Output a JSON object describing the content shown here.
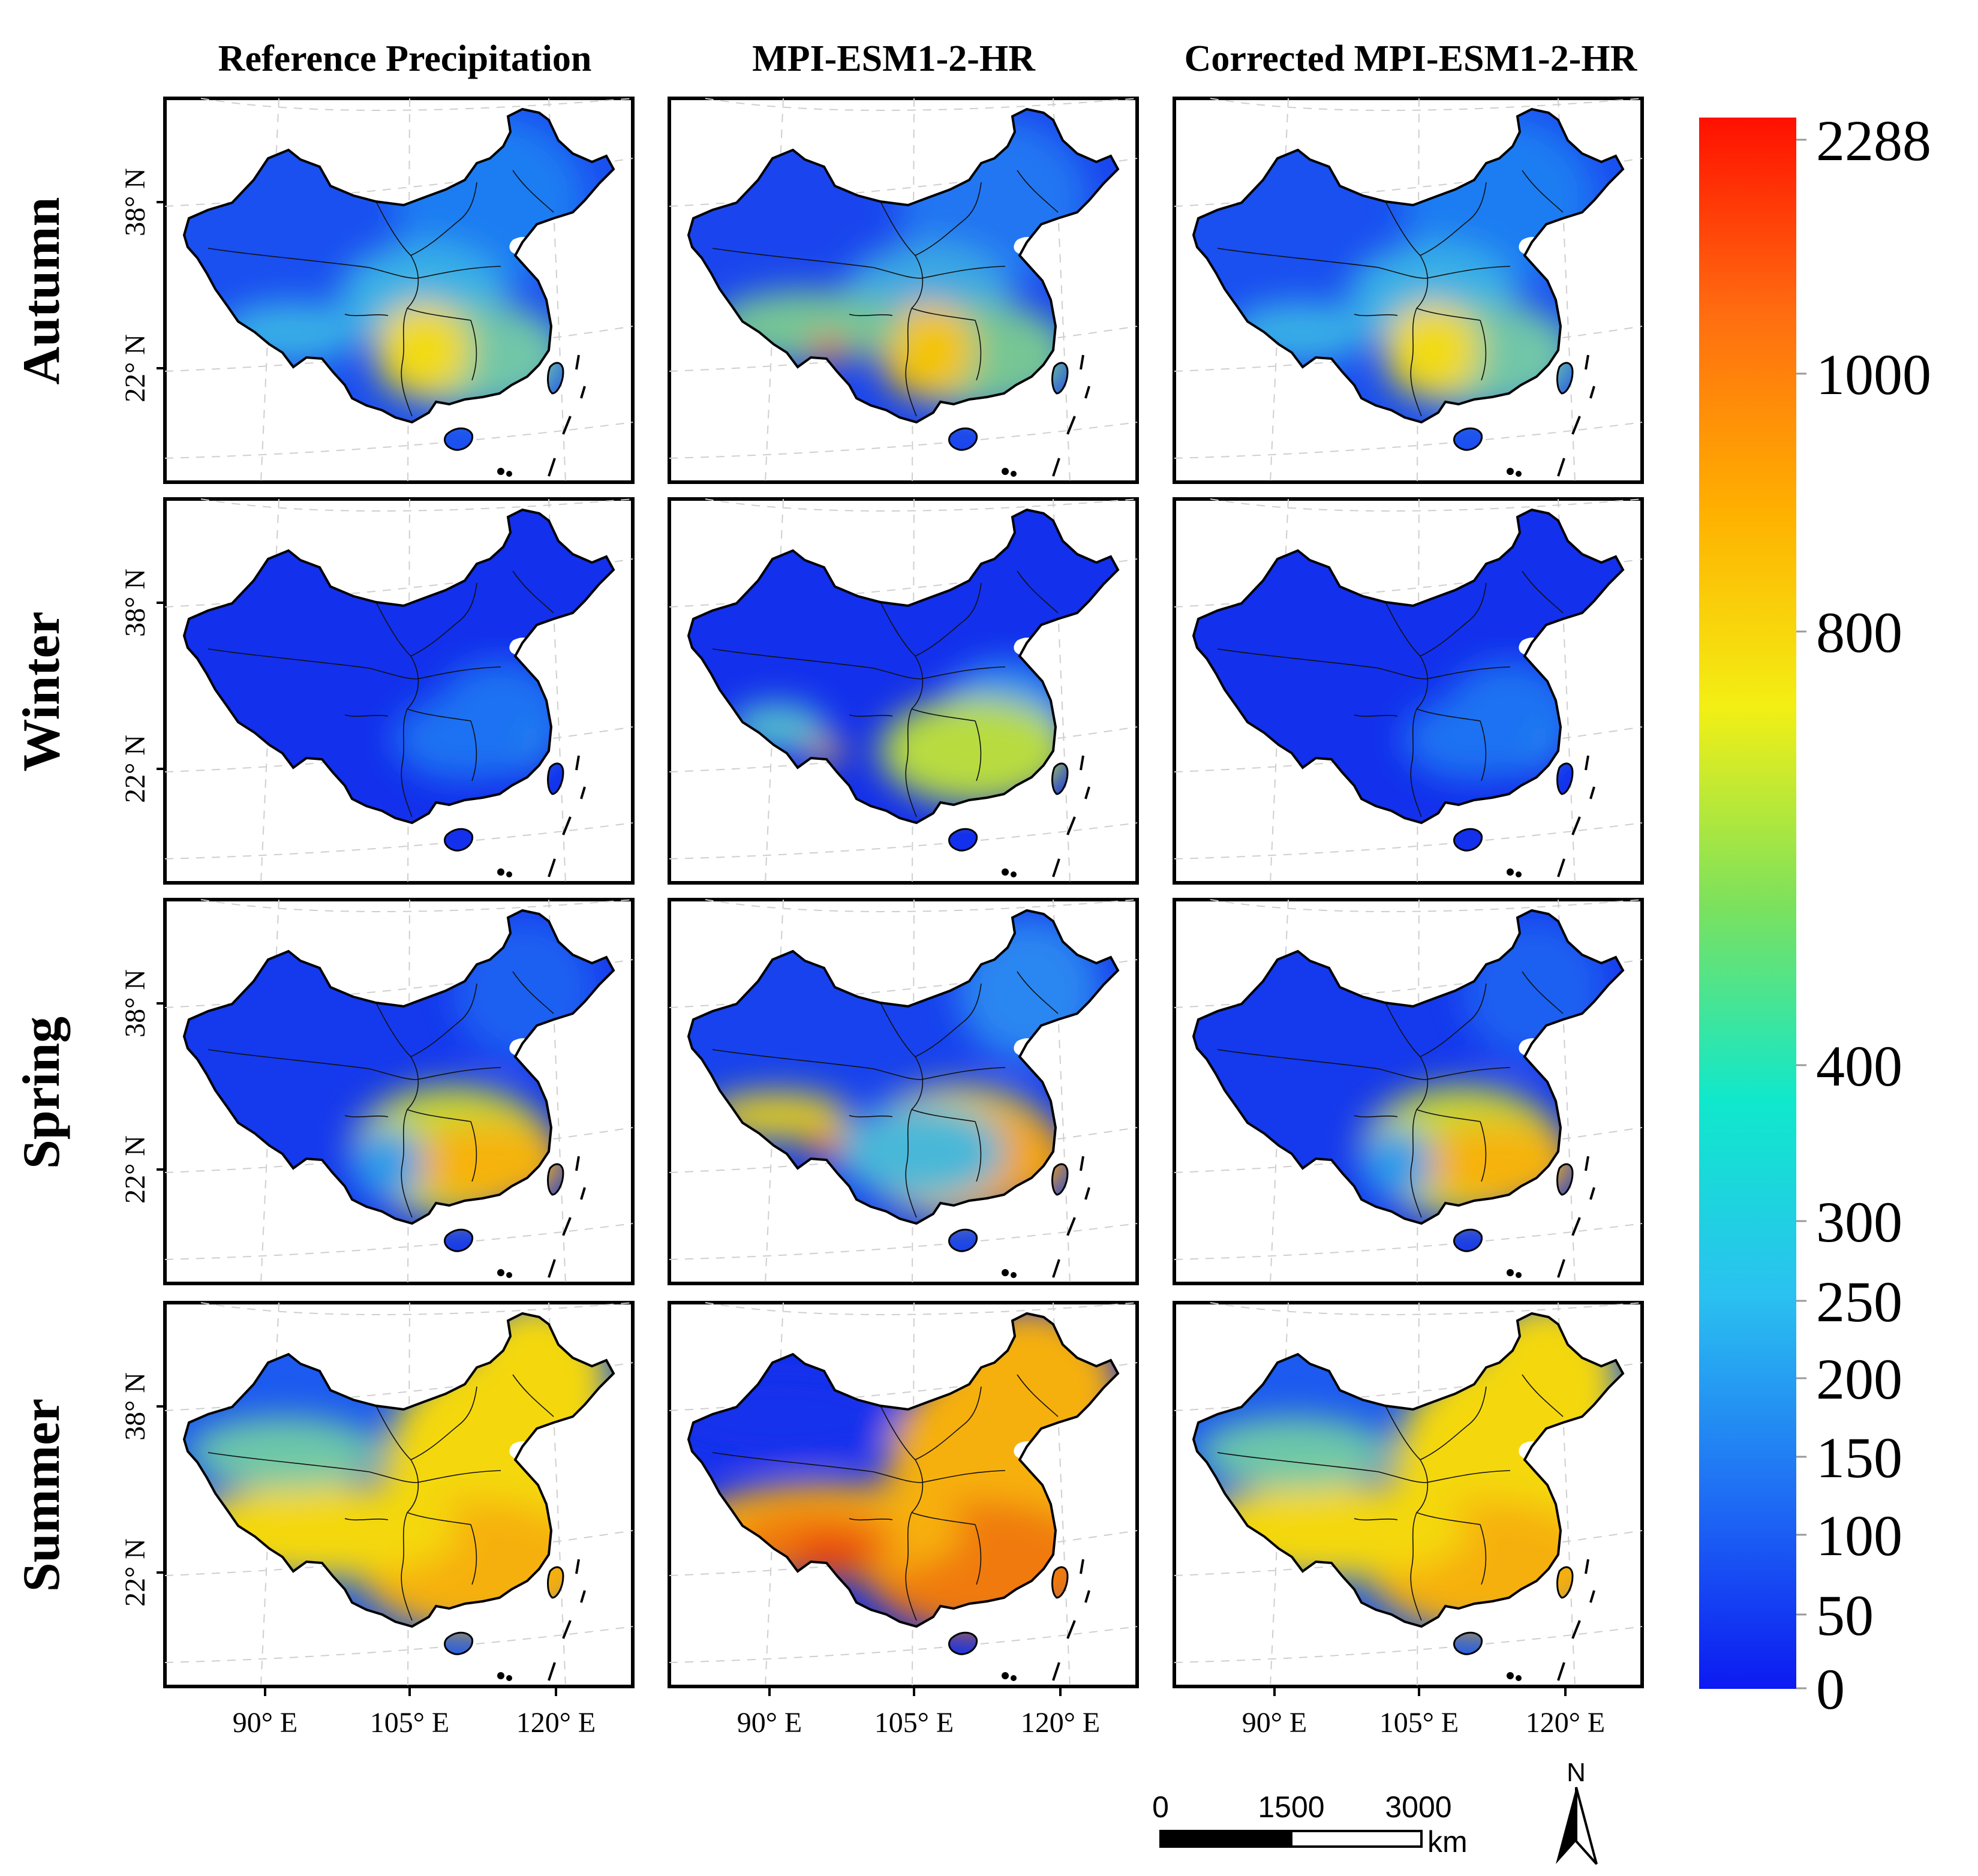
{
  "columns": [
    "Reference Precipitation",
    "MPI-ESM1-2-HR",
    "Corrected MPI-ESM1-2-HR"
  ],
  "rows": [
    "Autumn",
    "Winter",
    "Spring",
    "Summer"
  ],
  "lat_ticks": [
    "38° N",
    "22° N"
  ],
  "lon_ticks": [
    "90° E",
    "105° E",
    "120° E"
  ],
  "colorbar": {
    "ticks": [
      "2288",
      "1000",
      "800",
      "400",
      "300",
      "250",
      "200",
      "150",
      "100",
      "50",
      "0"
    ],
    "colors": [
      "#0c1af2",
      "#1f6ff4",
      "#2ac1f0",
      "#10e8cc",
      "#7de15c",
      "#f3ef14",
      "#ffb000",
      "#ff6d10",
      "#ff1000"
    ]
  },
  "scalebar": {
    "labels": [
      "0",
      "1500",
      "3000"
    ],
    "unit": "km"
  },
  "north_arrow": {
    "label": "N",
    "icon": "north-arrow-icon"
  },
  "map_data": {
    "Autumn": {
      "base": [
        "#1a4ff0",
        "#1e7df2",
        "#37b0e6",
        "#71c6a8",
        "#f2da16"
      ],
      "model": [
        "#1a45ee",
        "#2276f2",
        "#3aa8e2",
        "#76c694",
        "#f4c400",
        "#f05a10"
      ]
    },
    "Winter": {
      "base": [
        "#1330ec",
        "#1648ef",
        "#1e72f2",
        "#2fa0ea",
        "#58c8c0"
      ],
      "model": [
        "#1330ec",
        "#1b58f0",
        "#2a8ef0",
        "#52c0cc",
        "#b8dc40",
        "#f0b000"
      ]
    },
    "Spring": {
      "base": [
        "#1539ed",
        "#1c60f1",
        "#2c9cea",
        "#c8d830",
        "#f6b308"
      ],
      "model": [
        "#1742ee",
        "#2a86f0",
        "#4ab8d8",
        "#e0cc20",
        "#f4a408",
        "#f05a10"
      ]
    },
    "Summer": {
      "base": [
        "#1c5af0",
        "#2e98e8",
        "#6dc8a8",
        "#f4d810",
        "#f6b008"
      ],
      "model": [
        "#1330ec",
        "#2e98e8",
        "#e8d818",
        "#f6b008",
        "#f07a10",
        "#e83a10"
      ]
    }
  }
}
